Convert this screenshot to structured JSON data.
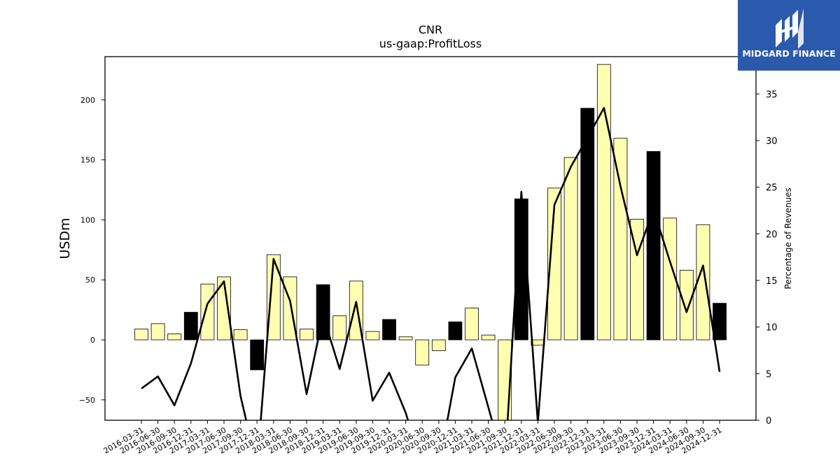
{
  "chart_data": {
    "type": "bar",
    "title": "CNR",
    "subtitle": "us-gaap:ProfitLoss",
    "ylabel": "USDm",
    "ylabel_right": "Percentage of Revenues",
    "ylim": [
      -67,
      236
    ],
    "ylim_right": [
      0,
      39
    ],
    "yticks_left": [
      -50,
      0,
      50,
      100,
      150,
      200
    ],
    "yticks_right": [
      0,
      5,
      10,
      15,
      20,
      25,
      30,
      35
    ],
    "categories": [
      "2016-03-31",
      "2016-06-30",
      "2016-09-30",
      "2016-12-31",
      "2017-03-31",
      "2017-06-30",
      "2017-09-30",
      "2017-12-31",
      "2018-03-31",
      "2018-06-30",
      "2018-09-30",
      "2018-12-31",
      "2019-03-31",
      "2019-06-30",
      "2019-09-30",
      "2019-12-31",
      "2020-03-31",
      "2020-06-30",
      "2020-09-30",
      "2020-12-31",
      "2021-03-31",
      "2021-06-30",
      "2021-09-30",
      "2021-12-31",
      "2022-03-31",
      "2022-06-30",
      "2022-09-30",
      "2022-12-31",
      "2023-03-31",
      "2023-06-30",
      "2023-09-30",
      "2023-12-31",
      "2024-03-31",
      "2024-06-30",
      "2024-09-30",
      "2024-12-31"
    ],
    "series": [
      {
        "type": "bar",
        "axis": "left",
        "values": [
          9,
          13.5,
          5,
          23,
          46.5,
          52.5,
          8.5,
          -25,
          71,
          52.5,
          9,
          46,
          20,
          49,
          7,
          17,
          2.5,
          -21,
          -9,
          15,
          26.5,
          4,
          -70,
          117.5,
          -4.5,
          126.5,
          152,
          193,
          229.5,
          168,
          100.5,
          157,
          101.5,
          58,
          96,
          30.5
        ],
        "quarter_end_colors": [
          "#ffffb2",
          "#ffffb2",
          "#ffffb2",
          "#000000"
        ]
      },
      {
        "type": "line",
        "axis": "right",
        "values": [
          3.4,
          4.7,
          1.6,
          6.1,
          12.5,
          14.9,
          2.6,
          -5,
          17.3,
          12.8,
          2.8,
          11.2,
          5.5,
          12.7,
          2.1,
          5.1,
          0.8,
          -5,
          -5,
          4.6,
          7.7,
          1.4,
          -5,
          24.5,
          -0.3,
          23.1,
          27.2,
          30.3,
          33.5,
          25.1,
          17.7,
          22.6,
          17,
          11.6,
          16.6,
          5.2
        ]
      }
    ],
    "grid": false,
    "colors": {
      "bar_fill": "#ffffb2",
      "q4_bar_fill": "#000000",
      "line": "#000000"
    }
  },
  "logo": {
    "name": "MIDGARD FINANCE",
    "bg_color": "#2b5aad"
  }
}
